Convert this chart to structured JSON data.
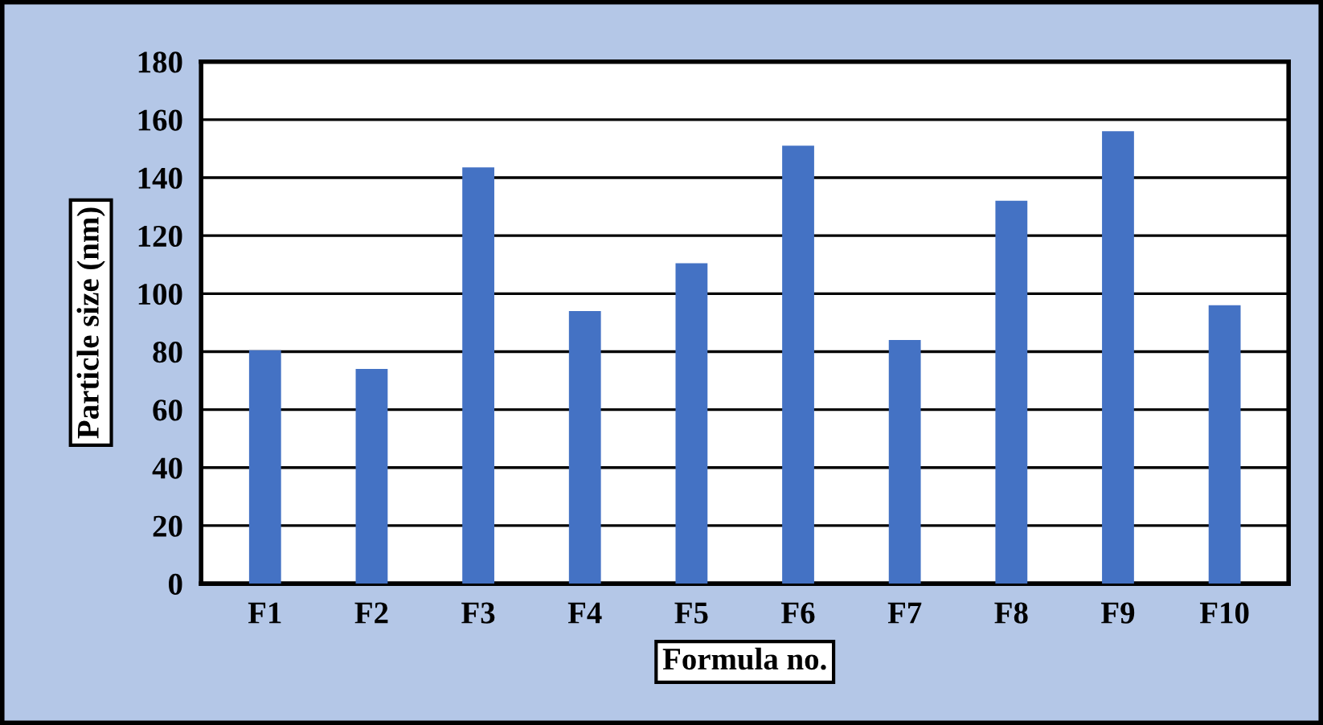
{
  "chart_data": {
    "type": "bar",
    "xlabel": "Formula no.",
    "ylabel": "Particle size (nm)",
    "categories": [
      "F1",
      "F2",
      "F3",
      "F4",
      "F5",
      "F6",
      "F7",
      "F8",
      "F9",
      "F10"
    ],
    "values": [
      80.5,
      74,
      143.5,
      94,
      110.5,
      151,
      84,
      132,
      156,
      96
    ],
    "color": "#4472c4",
    "ylim": [
      0,
      180
    ],
    "yticks": [
      0,
      20,
      40,
      60,
      80,
      100,
      120,
      140,
      160,
      180
    ],
    "grid": "y"
  }
}
